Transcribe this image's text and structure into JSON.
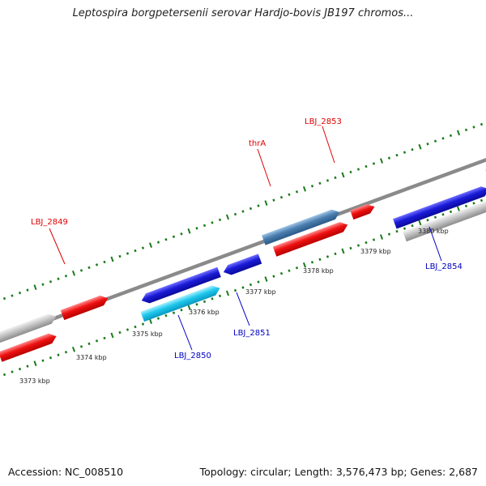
{
  "title": "Leptospira borgpetersenii serovar Hardjo-bovis JB197 chromos...",
  "footer": {
    "accession": "Accession: NC_008510",
    "summary": "Topology: circular; Length: 3,576,473 bp; Genes: 2,687"
  },
  "colors": {
    "backbone": "#888888",
    "tick": "#1a7a1a",
    "label_red": "#e00000",
    "label_blue": "#0000c0",
    "red_gene": "#ee1111",
    "blue_gene": "#1a1ad8",
    "cyan_gene": "#1ec8ee",
    "gray_gene": "#c4c4c4",
    "steel_gene": "#4a7eae"
  },
  "scale_labels": [
    "3373 kbp",
    "3374 kbp",
    "3375 kbp",
    "3376 kbp",
    "3377 kbp",
    "3378 kbp",
    "3379 kbp",
    "3380 kbp"
  ],
  "gene_labels": [
    {
      "id": "lbl-2849",
      "text": "LBJ_2849",
      "color": "red"
    },
    {
      "id": "lbl-thra",
      "text": "thrA",
      "color": "red"
    },
    {
      "id": "lbl-2853",
      "text": "LBJ_2853",
      "color": "red"
    },
    {
      "id": "lbl-2850",
      "text": "LBJ_2850",
      "color": "blue"
    },
    {
      "id": "lbl-2851",
      "text": "LBJ_2851",
      "color": "blue"
    },
    {
      "id": "lbl-2854",
      "text": "LBJ_2854",
      "color": "blue"
    }
  ]
}
